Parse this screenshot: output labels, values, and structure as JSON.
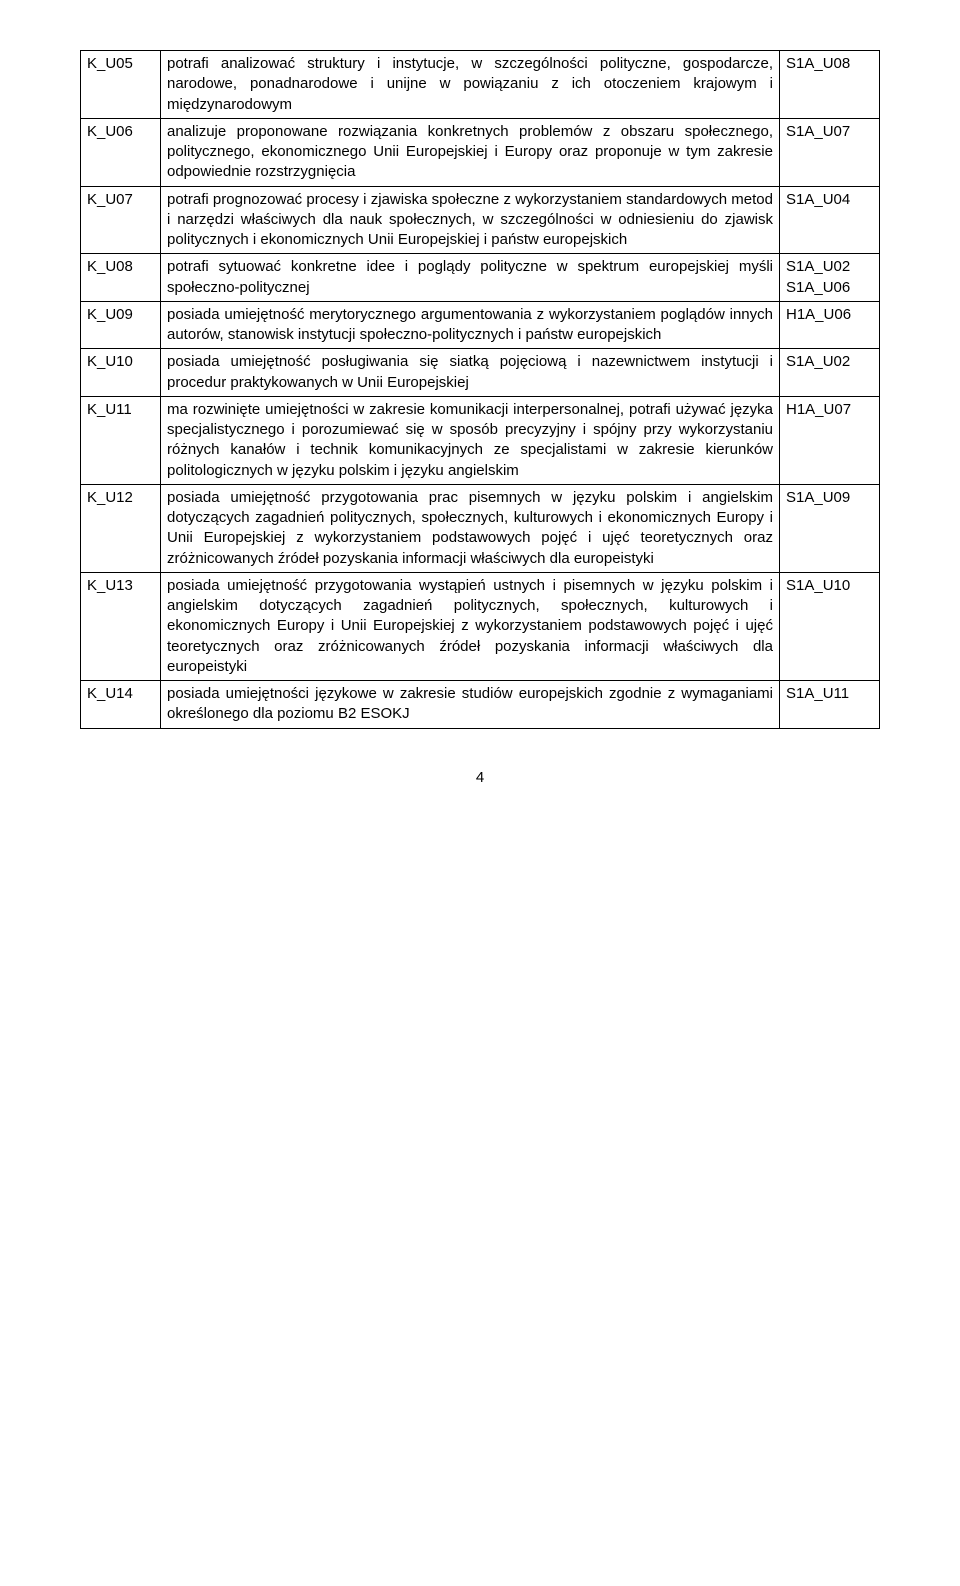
{
  "page_number": "4",
  "rows": [
    {
      "code": "K_U05",
      "desc": "potrafi analizować struktury i instytucje, w szczególności polityczne, gospodarcze, narodowe, ponadnarodowe i unijne w powiązaniu z ich otoczeniem krajowym i międzynarodowym",
      "tags": [
        "S1A_U08"
      ]
    },
    {
      "code": "K_U06",
      "desc": "analizuje proponowane rozwiązania konkretnych problemów z obszaru społecznego, politycznego, ekonomicznego Unii Europejskiej i Europy oraz proponuje w tym zakresie odpowiednie rozstrzygnięcia",
      "tags": [
        "S1A_U07"
      ]
    },
    {
      "code": "K_U07",
      "desc": "potrafi prognozować procesy i zjawiska społeczne z wykorzystaniem standardowych metod i narzędzi właściwych dla nauk społecznych, w szczególności w odniesieniu do zjawisk politycznych i ekonomicznych Unii Europejskiej i państw europejskich",
      "tags": [
        "S1A_U04"
      ]
    },
    {
      "code": "K_U08",
      "desc": "potrafi sytuować konkretne idee i poglądy polityczne w spektrum europejskiej myśli społeczno-politycznej",
      "tags": [
        "S1A_U02",
        "S1A_U06"
      ]
    },
    {
      "code": "K_U09",
      "desc": "posiada umiejętność merytorycznego argumentowania z wykorzystaniem poglądów innych autorów, stanowisk instytucji społeczno-politycznych i państw europejskich",
      "tags": [
        "H1A_U06"
      ]
    },
    {
      "code": "K_U10",
      "desc": "posiada umiejętność posługiwania się siatką pojęciową i nazewnictwem instytucji i procedur praktykowanych w Unii Europejskiej",
      "tags": [
        "S1A_U02"
      ]
    },
    {
      "code": "K_U11",
      "desc": "ma rozwinięte umiejętności w zakresie komunikacji interpersonalnej, potrafi używać języka specjalistycznego i porozumiewać się w sposób precyzyjny i spójny przy wykorzystaniu różnych kanałów i technik komunikacyjnych ze specjalistami w zakresie kierunków politologicznych w języku polskim i języku angielskim",
      "tags": [
        "H1A_U07"
      ]
    },
    {
      "code": "K_U12",
      "desc": "posiada umiejętność przygotowania prac pisemnych w języku polskim i angielskim dotyczących zagadnień politycznych, społecznych, kulturowych i ekonomicznych Europy i Unii Europejskiej z wykorzystaniem podstawowych pojęć i ujęć teoretycznych oraz zróżnicowanych źródeł pozyskania informacji właściwych dla europeistyki",
      "tags": [
        "S1A_U09"
      ]
    },
    {
      "code": "K_U13",
      "desc": "posiada umiejętność przygotowania wystąpień ustnych i pisemnych w języku polskim i angielskim dotyczących zagadnień politycznych, społecznych, kulturowych i ekonomicznych Europy i Unii Europejskiej z wykorzystaniem podstawowych pojęć i ujęć teoretycznych oraz zróżnicowanych źródeł pozyskania informacji właściwych dla europeistyki",
      "tags": [
        "S1A_U10"
      ]
    },
    {
      "code": "K_U14",
      "desc": "posiada umiejętności językowe w zakresie studiów europejskich zgodnie z wymaganiami określonego dla poziomu B2 ESOKJ",
      "tags": [
        "S1A_U11"
      ]
    }
  ]
}
